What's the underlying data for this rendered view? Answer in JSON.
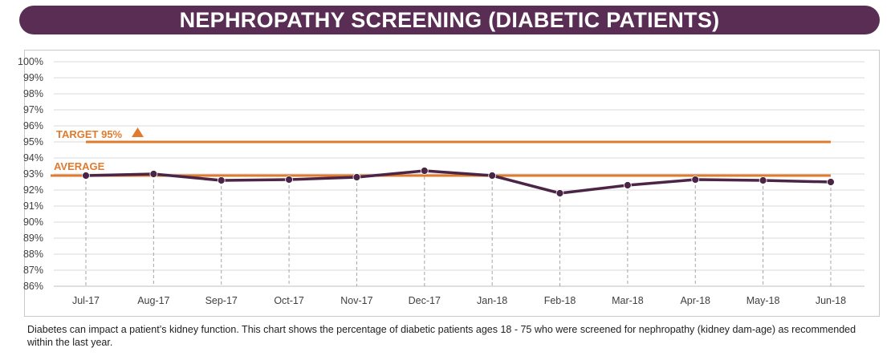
{
  "header": {
    "title": "NEPHROPATHY SCREENING (DIABETIC PATIENTS)"
  },
  "caption": "Diabetes can impact a patient’s kidney function.  This chart shows the percentage of diabetic patients ages 18 - 75 who were screened for nephropathy (kidney dam-age) as recommended within the last year.",
  "colors": {
    "title_bg": "#5a2d55",
    "series": "#4b2545",
    "reference": "#e07b2e",
    "grid": "#d9d9d9",
    "drop_line": "#a6a6a6",
    "axis_text": "#404040"
  },
  "chart_data": {
    "type": "line",
    "categories": [
      "Jul-17",
      "Aug-17",
      "Sep-17",
      "Oct-17",
      "Nov-17",
      "Dec-17",
      "Jan-18",
      "Feb-18",
      "Mar-18",
      "Apr-18",
      "May-18",
      "Jun-18"
    ],
    "series": [
      {
        "values": [
          92.9,
          93.0,
          92.6,
          92.65,
          92.8,
          93.2,
          92.9,
          91.8,
          92.3,
          92.65,
          92.6,
          92.5
        ]
      }
    ],
    "y_ticks": [
      "86%",
      "87%",
      "88%",
      "89%",
      "90%",
      "91%",
      "92%",
      "93%",
      "94%",
      "95%",
      "96%",
      "97%",
      "98%",
      "99%",
      "100%"
    ],
    "ylim": [
      86,
      100
    ],
    "reference_lines": [
      {
        "label": "TARGET 95%",
        "value": 95,
        "marker": "triangle-up"
      },
      {
        "label": "AVERAGE",
        "value": 92.9
      }
    ],
    "vertical_drop_lines": true,
    "grid": "horizontal"
  }
}
